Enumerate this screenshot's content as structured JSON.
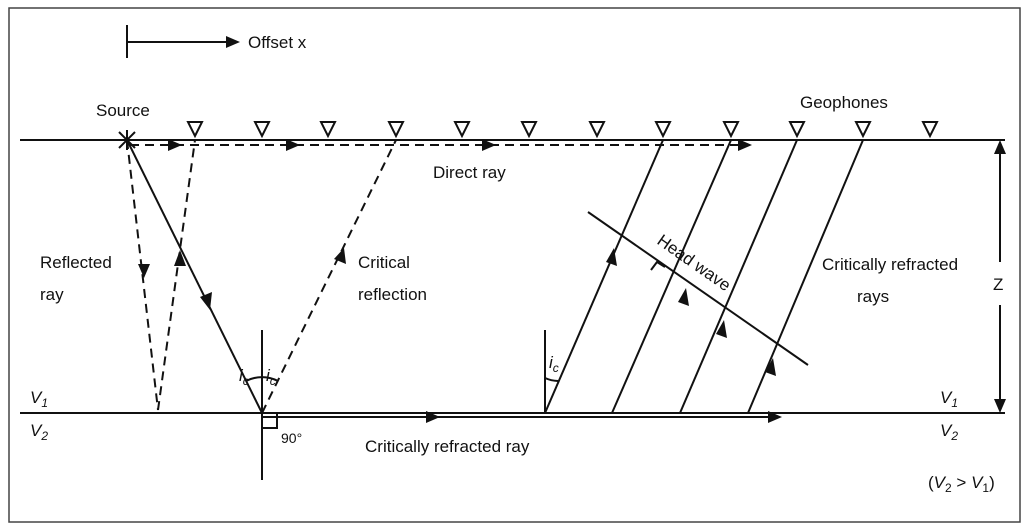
{
  "offset_label": "Offset x",
  "source_label": "Source",
  "geophones_label": "Geophones",
  "direct_ray_label": "Direct ray",
  "reflected_ray_label": [
    "Reflected",
    "ray"
  ],
  "critical_reflection_label": [
    "Critical",
    "reflection"
  ],
  "head_wave_label": "Head wave",
  "refracted_rays_label": [
    "Critically refracted",
    "rays"
  ],
  "depth_label": "Z",
  "refracted_ray_label": "Critically refracted ray",
  "right_angle_label": "90°",
  "critical_angle": {
    "base": "i",
    "sub": "c"
  },
  "layer_top": {
    "base": "V",
    "sub": "1"
  },
  "layer_bottom": {
    "base": "V",
    "sub": "2"
  },
  "velocity_condition": {
    "open": "(",
    "left_base": "V",
    "left_sub": "2",
    "relation": " > ",
    "right_base": "V",
    "right_sub": "1",
    "close": ")"
  }
}
